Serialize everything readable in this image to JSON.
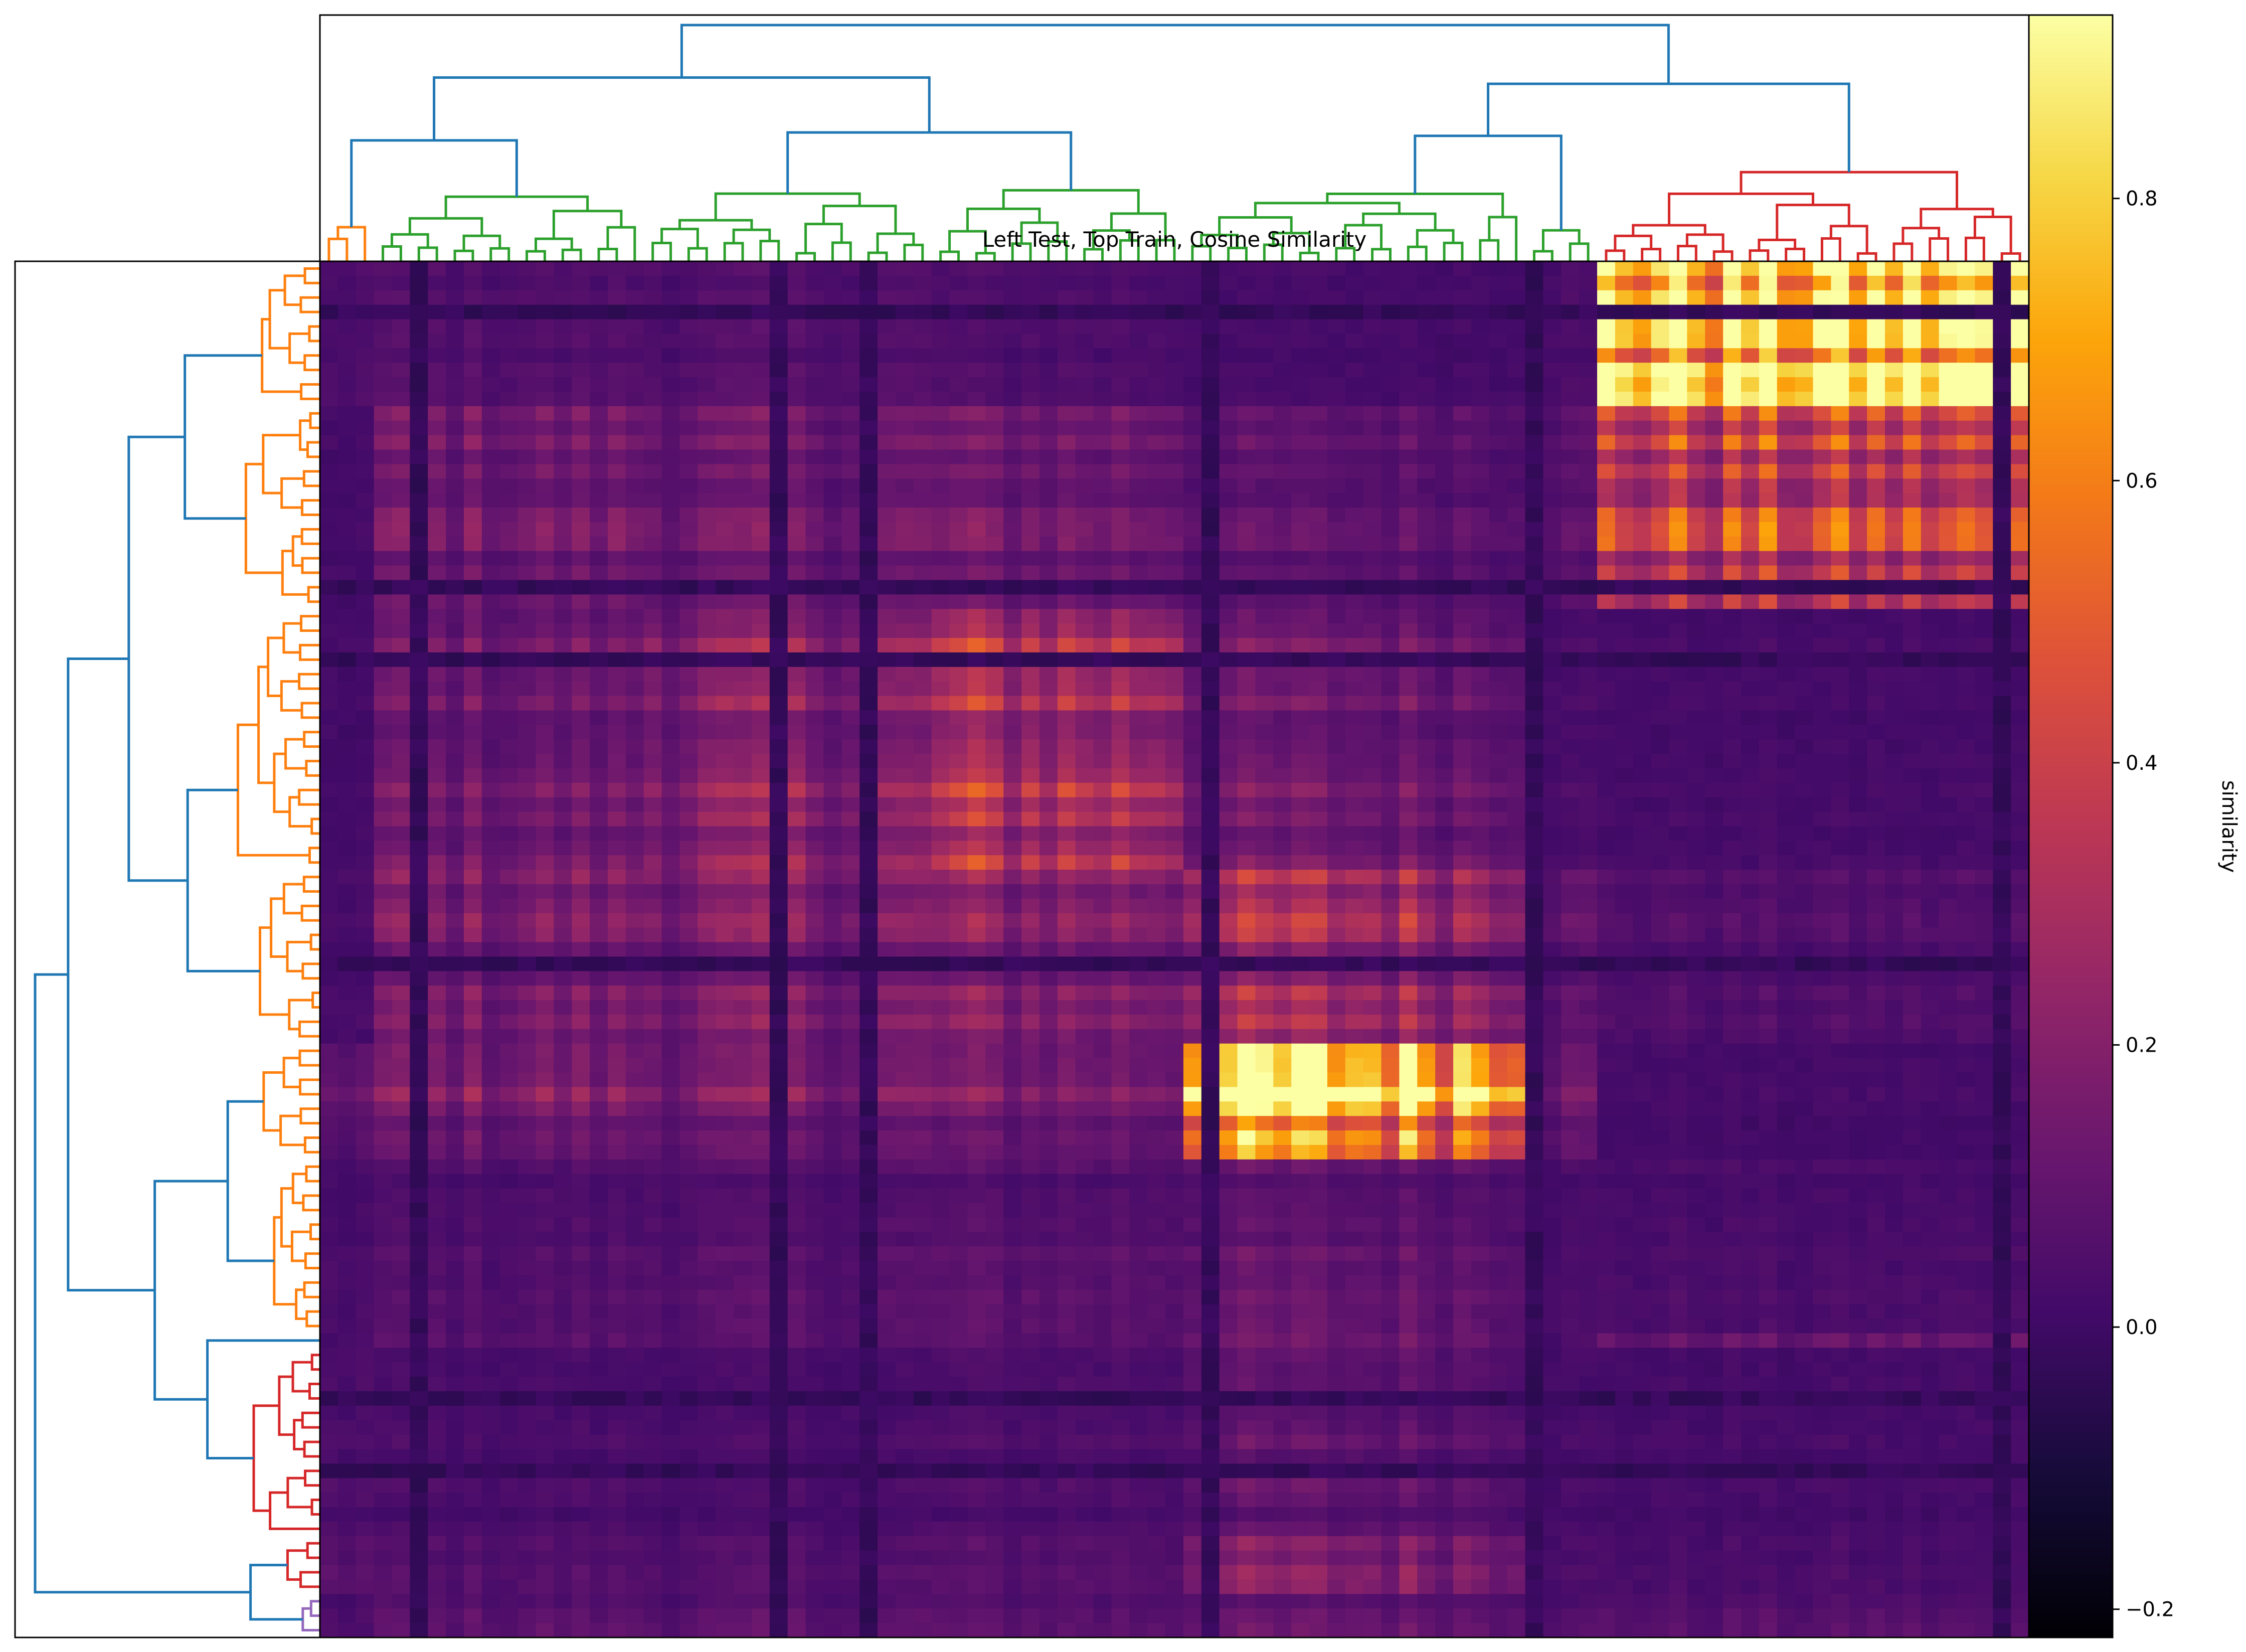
{
  "chart_data": {
    "type": "heatmap",
    "title": "Left Test, Top Train, Cosine Similarity",
    "colorbar": {
      "label": "similarity",
      "colormap": "inferno",
      "vmin": -0.22,
      "vmax": 0.93,
      "ticks": [
        -0.2,
        0.0,
        0.2,
        0.4,
        0.6,
        0.8
      ],
      "tick_labels": [
        "−0.2",
        "0.0",
        "0.2",
        "0.4",
        "0.6",
        "0.8"
      ]
    },
    "grid": false,
    "n_rows": 95,
    "n_cols": 95,
    "row_groups": [
      {
        "count": 10,
        "color": "#ff7f0e"
      },
      {
        "count": 14,
        "color": "#ff7f0e"
      },
      {
        "count": 18,
        "color": "#ff7f0e"
      },
      {
        "count": 12,
        "color": "#ff7f0e"
      },
      {
        "count": 8,
        "color": "#ff7f0e"
      },
      {
        "count": 12,
        "color": "#ff7f0e"
      },
      {
        "count": 1,
        "color": "#2ca02c"
      },
      {
        "count": 13,
        "color": "#d62728"
      },
      {
        "count": 4,
        "color": "#d62728"
      },
      {
        "count": 3,
        "color": "#9467bd"
      }
    ],
    "col_groups": [
      {
        "count": 3,
        "color": "#ff7f0e"
      },
      {
        "count": 15,
        "color": "#2ca02c"
      },
      {
        "count": 16,
        "color": "#2ca02c"
      },
      {
        "count": 14,
        "color": "#2ca02c"
      },
      {
        "count": 19,
        "color": "#2ca02c"
      },
      {
        "count": 4,
        "color": "#2ca02c"
      },
      {
        "count": 24,
        "color": "#d62728"
      }
    ],
    "group_similarity": [
      [
        0.04,
        0.05,
        0.05,
        0.04,
        0.02,
        0.03,
        0.78
      ],
      [
        0.02,
        0.13,
        0.12,
        0.13,
        0.08,
        0.07,
        0.36
      ],
      [
        0.02,
        0.12,
        0.18,
        0.28,
        0.12,
        0.03,
        0.02
      ],
      [
        0.03,
        0.15,
        0.16,
        0.18,
        0.25,
        0.08,
        0.05
      ],
      [
        0.1,
        0.16,
        0.15,
        0.15,
        0.85,
        0.12,
        0.02
      ],
      [
        0.03,
        0.05,
        0.06,
        0.07,
        0.09,
        0.03,
        0.03
      ],
      [
        0.05,
        0.13,
        0.12,
        0.13,
        0.22,
        0.06,
        0.2
      ],
      [
        0.04,
        0.03,
        0.03,
        0.04,
        0.08,
        0.02,
        0.02
      ],
      [
        0.07,
        0.05,
        0.05,
        0.06,
        0.16,
        0.03,
        0.03
      ],
      [
        0.03,
        0.06,
        0.06,
        0.06,
        0.08,
        0.04,
        0.05
      ]
    ],
    "link_colors": {
      "root": "#1f77b4",
      "orange": "#ff7f0e",
      "green": "#2ca02c",
      "red": "#d62728",
      "purple": "#9467bd"
    }
  }
}
